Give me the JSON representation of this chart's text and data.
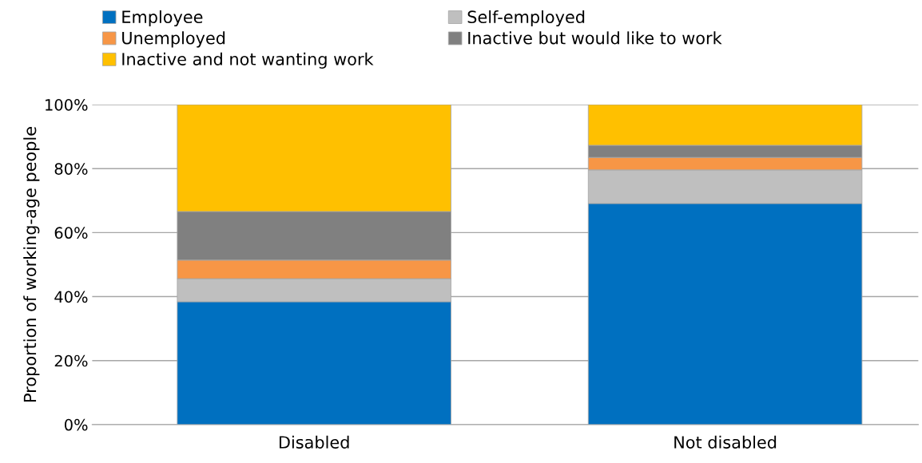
{
  "chart_data": {
    "type": "bar",
    "stacked": true,
    "ylabel": "Proportion of working-age people",
    "categories": [
      "Disabled",
      "Not disabled"
    ],
    "series": [
      {
        "name": "Employee",
        "color": "#0070c0",
        "values": [
          38.4,
          69.1
        ]
      },
      {
        "name": "Self-employed",
        "color": "#bfbfbf",
        "values": [
          7.2,
          10.5
        ]
      },
      {
        "name": "Unemployed",
        "color": "#f79646",
        "values": [
          5.8,
          3.9
        ]
      },
      {
        "name": "Inactive but would like to work",
        "color": "#808080",
        "values": [
          15.2,
          3.8
        ]
      },
      {
        "name": "Inactive and not wanting work",
        "color": "#ffc000",
        "values": [
          33.4,
          12.7
        ]
      }
    ],
    "ylim": [
      0,
      100
    ],
    "yticks": [
      {
        "value": 0,
        "label": "0%"
      },
      {
        "value": 20,
        "label": "20%"
      },
      {
        "value": 40,
        "label": "40%"
      },
      {
        "value": 60,
        "label": "60%"
      },
      {
        "value": 80,
        "label": "80%"
      },
      {
        "value": 100,
        "label": "100%"
      }
    ],
    "grid": "y",
    "legend": "top"
  }
}
